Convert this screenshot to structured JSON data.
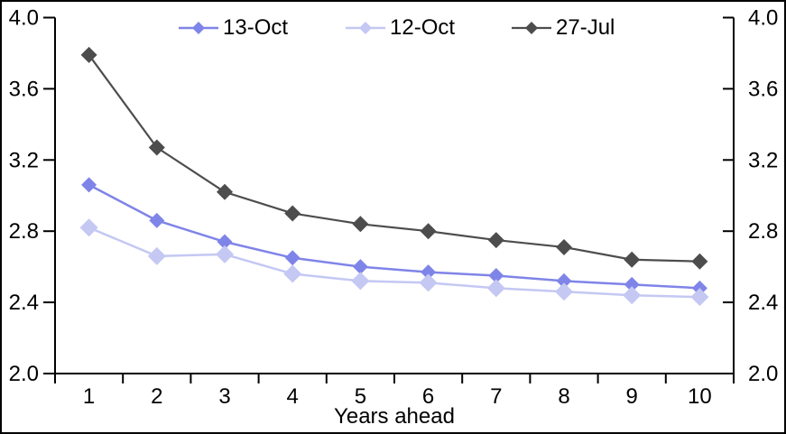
{
  "chart_data": {
    "type": "line",
    "title": "",
    "xlabel": "Years ahead",
    "ylabel": "",
    "x": [
      1,
      2,
      3,
      4,
      5,
      6,
      7,
      8,
      9,
      10
    ],
    "ylim": [
      2.0,
      4.0
    ],
    "ytick_labels": [
      "4.0",
      "3.6",
      "3.2",
      "2.8",
      "2.4",
      "2.0"
    ],
    "ytick_values": [
      4.0,
      3.6,
      3.2,
      2.8,
      2.4,
      2.0
    ],
    "y_axis_sides": "both",
    "grid": false,
    "legend_position": "top",
    "axis_color": "#000000",
    "text_color": "#000000",
    "background_color": "#ffffff",
    "marker_shape": "diamond",
    "series": [
      {
        "name": "13-Oct",
        "color": "#7f84e8",
        "values": [
          3.06,
          2.86,
          2.74,
          2.65,
          2.6,
          2.57,
          2.55,
          2.52,
          2.5,
          2.48
        ]
      },
      {
        "name": "12-Oct",
        "color": "#c4c8f3",
        "values": [
          2.82,
          2.66,
          2.67,
          2.56,
          2.52,
          2.51,
          2.48,
          2.46,
          2.44,
          2.43
        ]
      },
      {
        "name": "27-Jul",
        "color": "#4d4d4d",
        "values": [
          3.79,
          3.27,
          3.02,
          2.9,
          2.84,
          2.8,
          2.75,
          2.71,
          2.64,
          2.63
        ]
      }
    ]
  }
}
